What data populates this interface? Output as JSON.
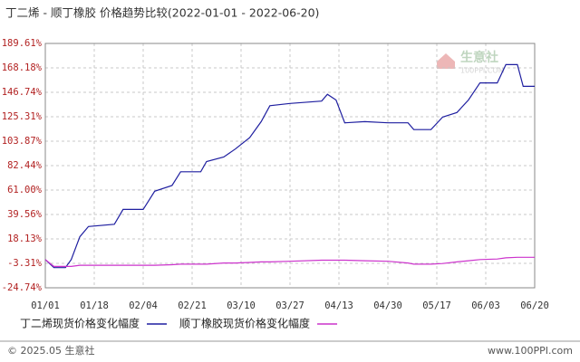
{
  "chart_data": {
    "type": "line",
    "title": "丁二烯 - 顺丁橡胶 价格趋势比较(2022-01-01 - 2022-06-20)",
    "x": [
      "01/01",
      "01/04",
      "01/08",
      "01/10",
      "01/13",
      "01/16",
      "01/25",
      "01/28",
      "02/04",
      "02/08",
      "02/14",
      "02/17",
      "02/24",
      "02/26",
      "03/04",
      "03/08",
      "03/13",
      "03/17",
      "03/20",
      "03/27",
      "04/07",
      "04/09",
      "04/12",
      "04/15",
      "04/22",
      "04/30",
      "05/07",
      "05/09",
      "05/15",
      "05/19",
      "05/24",
      "05/28",
      "06/01",
      "06/07",
      "06/10",
      "06/14",
      "06/16",
      "06/20"
    ],
    "xlim": [
      "01/01",
      "06/20"
    ],
    "xticks": [
      "01/01",
      "01/18",
      "02/04",
      "02/21",
      "03/10",
      "03/27",
      "04/13",
      "04/30",
      "05/17",
      "06/03",
      "06/20"
    ],
    "ylim": [
      -24.74,
      189.61
    ],
    "yticks": [
      {
        "value": -24.74,
        "label": "-24.74%"
      },
      {
        "value": -3.31,
        "label": "-3.31%"
      },
      {
        "value": 18.13,
        "label": "18.13%"
      },
      {
        "value": 39.56,
        "label": "39.56%"
      },
      {
        "value": 61.0,
        "label": "61.00%"
      },
      {
        "value": 82.44,
        "label": "82.44%"
      },
      {
        "value": 103.87,
        "label": "103.87%"
      },
      {
        "value": 125.31,
        "label": "125.31%"
      },
      {
        "value": 146.74,
        "label": "146.74%"
      },
      {
        "value": 168.18,
        "label": "168.18%"
      },
      {
        "value": 189.61,
        "label": "189.61%"
      }
    ],
    "grid": true,
    "legend": "bottom-left",
    "series": [
      {
        "name": "丁二烯现货价格变化幅度",
        "color": "#1f1fa0",
        "values": [
          0,
          -7,
          -7,
          0,
          20,
          29,
          31,
          44,
          44,
          60,
          65,
          77,
          77,
          86,
          90,
          97,
          107,
          121,
          135,
          137,
          139,
          145,
          140,
          120,
          121,
          120,
          120,
          114,
          114,
          125,
          129,
          140,
          155,
          155,
          171,
          171,
          152,
          152
        ]
      },
      {
        "name": "顺丁橡胶现货价格变化幅度",
        "color": "#cc33cc",
        "values": [
          0,
          -6,
          -6,
          -6,
          -5,
          -5,
          -5,
          -5,
          -5,
          -5,
          -4.5,
          -4,
          -4,
          -4,
          -3,
          -3,
          -2.5,
          -2,
          -2,
          -1.5,
          -0.5,
          -0.5,
          -0.5,
          -0.5,
          -1,
          -1.5,
          -3,
          -4,
          -4,
          -3.5,
          -2,
          -1,
          0,
          0.5,
          1.5,
          2,
          2,
          2
        ]
      }
    ]
  },
  "watermark": {
    "text": "生意社",
    "subtext": "100PPI.COM"
  },
  "footer": {
    "left": "© 2025.05 生意社",
    "right": "www.100PPI.com"
  }
}
